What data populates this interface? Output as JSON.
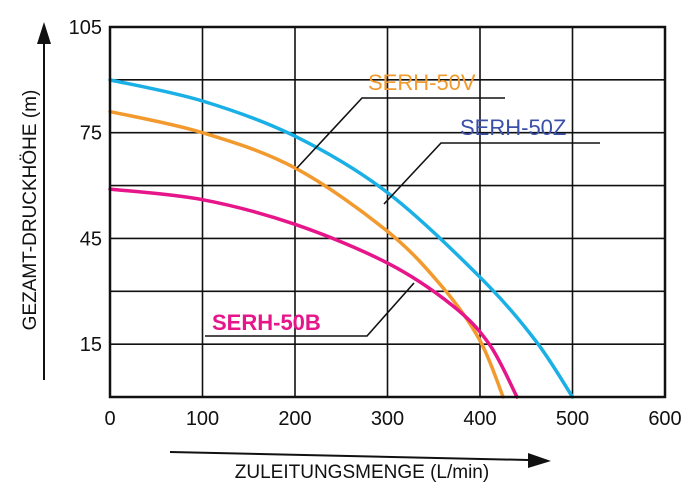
{
  "chart_data": {
    "type": "line",
    "xlabel": "ZULEITUNGSMENGE (L/min)",
    "ylabel": "GEZAMT-DRUCKHÖHE (m)",
    "xlim": [
      0,
      600
    ],
    "ylim": [
      0,
      105
    ],
    "x_ticks": [
      "0",
      "100",
      "200",
      "300",
      "400",
      "500",
      "600"
    ],
    "y_ticks": [
      {
        "value": 15,
        "label": "15"
      },
      {
        "value": 45,
        "label": "45"
      },
      {
        "value": 75,
        "label": "75"
      },
      {
        "value": 105,
        "label": "105"
      }
    ],
    "grid": true,
    "series": [
      {
        "name": "SERH-50Z",
        "color": "#1ab0e6",
        "label_color": "#3a4fa8",
        "x": [
          0,
          100,
          200,
          300,
          400,
          460,
          500
        ],
        "y": [
          90,
          84,
          74,
          58,
          34,
          16,
          0
        ]
      },
      {
        "name": "SERH-50V",
        "color": "#f29a2e",
        "label_color": "#f29a2e",
        "x": [
          0,
          100,
          200,
          300,
          360,
          400,
          425
        ],
        "y": [
          81,
          75,
          65,
          47,
          31,
          16,
          0
        ]
      },
      {
        "name": "SERH-50B",
        "color": "#e6158a",
        "label_color": "#e6158a",
        "x": [
          0,
          100,
          200,
          300,
          370,
          410,
          440
        ],
        "y": [
          59,
          56,
          49,
          38,
          26,
          15,
          0
        ]
      }
    ]
  }
}
